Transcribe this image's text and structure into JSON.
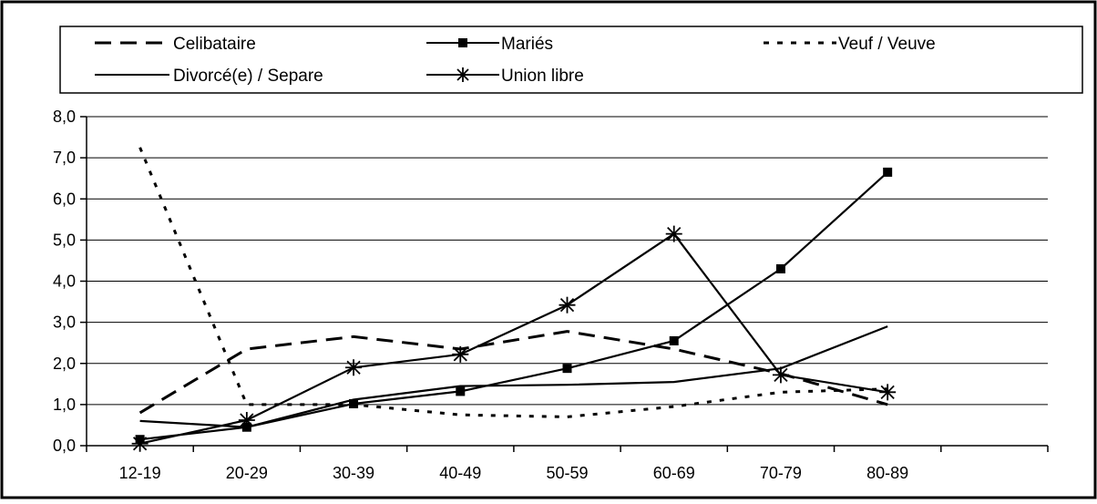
{
  "chart_data": {
    "type": "line",
    "title": "",
    "xlabel": "",
    "ylabel": "",
    "categories": [
      "12-19",
      "20-29",
      "30-39",
      "40-49",
      "50-59",
      "60-69",
      "70-79",
      "80-89"
    ],
    "ylim": [
      0,
      8
    ],
    "ytick_labels": [
      "0,0",
      "1,0",
      "2,0",
      "3,0",
      "4,0",
      "5,0",
      "6,0",
      "7,0",
      "8,0"
    ],
    "grid": "horizontal",
    "legend_position": "top",
    "series": [
      {
        "name": "Celibataire",
        "style": "long-dash",
        "marker": "none",
        "values": [
          0.8,
          2.35,
          2.65,
          2.35,
          2.78,
          2.35,
          1.75,
          1.0
        ]
      },
      {
        "name": "Mariés",
        "style": "solid",
        "marker": "square",
        "values": [
          0.15,
          0.45,
          1.02,
          1.32,
          1.88,
          2.55,
          4.3,
          6.65
        ]
      },
      {
        "name": "Veuf / Veuve",
        "style": "dotted",
        "marker": "none",
        "values": [
          7.25,
          1.0,
          1.0,
          0.75,
          0.7,
          0.95,
          1.3,
          1.38
        ]
      },
      {
        "name": "Divorcé(e) / Separe",
        "style": "solid",
        "marker": "none",
        "values": [
          0.6,
          0.45,
          1.12,
          1.45,
          1.48,
          1.55,
          1.88,
          2.9
        ]
      },
      {
        "name": "Union libre",
        "style": "solid",
        "marker": "asterisk",
        "values": [
          0.05,
          0.62,
          1.9,
          2.22,
          3.42,
          5.15,
          1.72,
          1.3
        ]
      }
    ],
    "colors": {
      "line": "#000000",
      "grid": "#000000",
      "background": "#ffffff"
    }
  }
}
